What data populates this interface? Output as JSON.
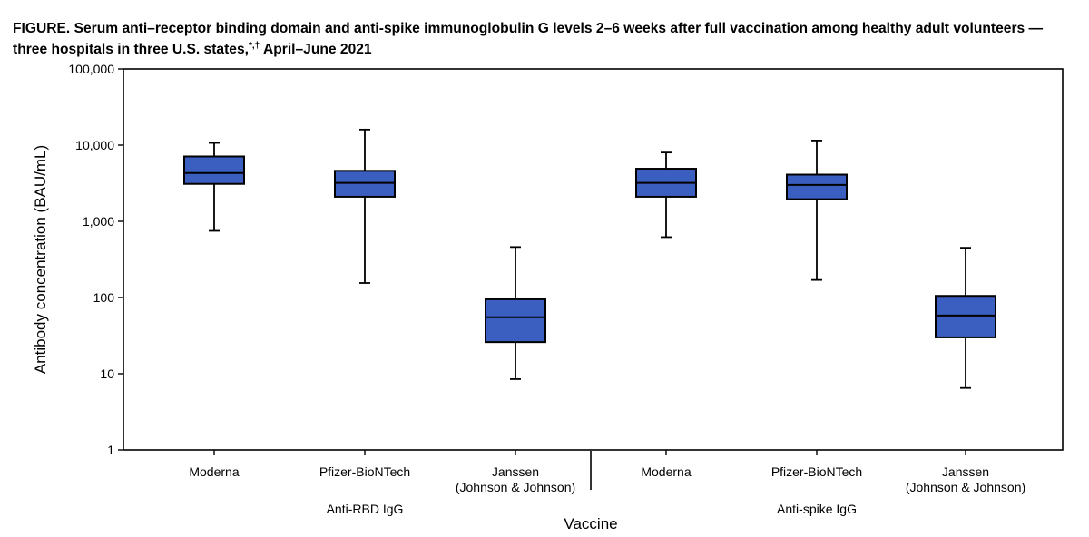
{
  "chart_data": {
    "type": "boxplot",
    "title": "FIGURE. Serum anti–receptor binding domain and anti-spike immunoglobulin G levels 2–6 weeks after full vaccination among healthy adult volunteers — three hospitals in three U.S. states,",
    "title_marks": "*,†",
    "title_suffix": " April–June 2021",
    "xlabel": "Vaccine",
    "ylabel": "Antibody concentration (BAU/mL)",
    "yscale": "log",
    "ylim": [
      1,
      100000
    ],
    "yticks": [
      1,
      10,
      100,
      1000,
      10000,
      100000
    ],
    "ytick_labels": [
      "1",
      "10",
      "100",
      "1,000",
      "10,000",
      "100,000"
    ],
    "grid": false,
    "box_color": "#3B5FC0",
    "groups": [
      {
        "label": "Anti-RBD IgG",
        "categories": [
          {
            "label": [
              "Moderna"
            ],
            "min": 750,
            "q1": 3100,
            "median": 4300,
            "q3": 7100,
            "max": 10700
          },
          {
            "label": [
              "Pfizer-BioNTech"
            ],
            "min": 155,
            "q1": 2100,
            "median": 3200,
            "q3": 4600,
            "max": 16000
          },
          {
            "label": [
              "Janssen",
              "(Johnson & Johnson)"
            ],
            "min": 8.5,
            "q1": 26,
            "median": 55,
            "q3": 95,
            "max": 460
          }
        ]
      },
      {
        "label": "Anti-spike IgG",
        "categories": [
          {
            "label": [
              "Moderna"
            ],
            "min": 620,
            "q1": 2100,
            "median": 3200,
            "q3": 4900,
            "max": 8000
          },
          {
            "label": [
              "Pfizer-BioNTech"
            ],
            "min": 170,
            "q1": 1950,
            "median": 3000,
            "q3": 4100,
            "max": 11500
          },
          {
            "label": [
              "Janssen",
              "(Johnson & Johnson)"
            ],
            "min": 6.5,
            "q1": 30,
            "median": 58,
            "q3": 105,
            "max": 450
          }
        ]
      }
    ]
  }
}
